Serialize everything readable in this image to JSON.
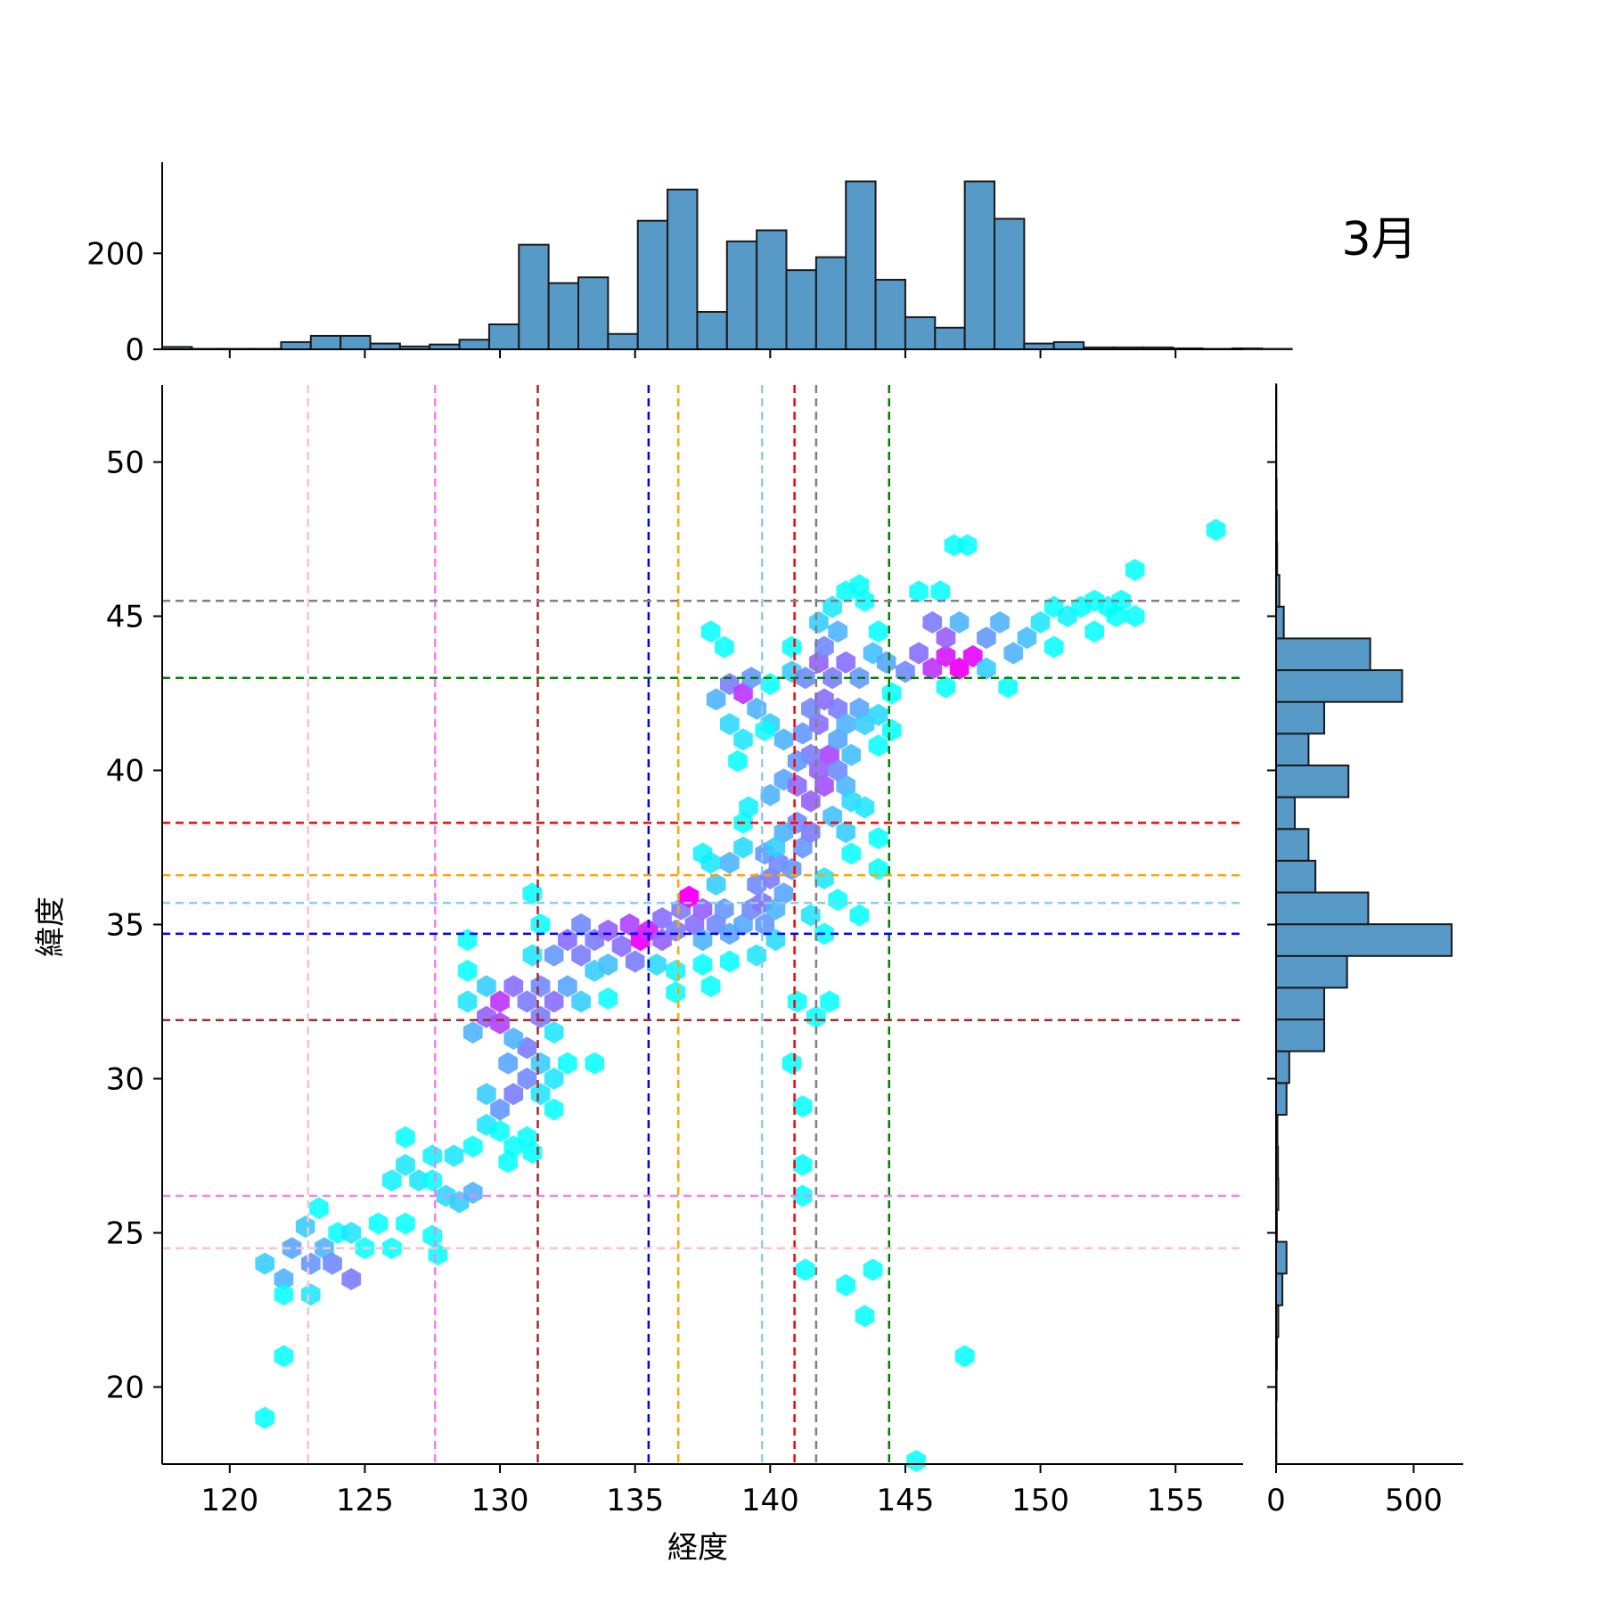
{
  "chart_data": {
    "type": "hexbin",
    "title": "3月",
    "xlabel": "経度",
    "ylabel": "緯度",
    "xlim": [
      117.5,
      157.5
    ],
    "ylim": [
      17.5,
      52.5
    ],
    "x_ticks": [
      120,
      125,
      130,
      135,
      140,
      145,
      150,
      155
    ],
    "y_ticks": [
      20,
      25,
      30,
      35,
      40,
      45,
      50
    ],
    "color_scale": [
      "#00ffff",
      "#ff00ff"
    ],
    "grid": false,
    "vertical_lines": [
      {
        "x": 122.9,
        "color": "#ffc0cb"
      },
      {
        "x": 127.6,
        "color": "#ee82ee"
      },
      {
        "x": 131.4,
        "color": "#a52a2a"
      },
      {
        "x": 135.5,
        "color": "#0000ff"
      },
      {
        "x": 136.6,
        "color": "#ffa500"
      },
      {
        "x": 139.7,
        "color": "#87ceeb"
      },
      {
        "x": 140.9,
        "color": "#ff0000"
      },
      {
        "x": 141.7,
        "color": "#808080"
      },
      {
        "x": 144.4,
        "color": "#008000"
      }
    ],
    "horizontal_lines": [
      {
        "y": 45.5,
        "color": "#808080"
      },
      {
        "y": 43.0,
        "color": "#008000"
      },
      {
        "y": 38.3,
        "color": "#ff0000"
      },
      {
        "y": 36.6,
        "color": "#ffa500"
      },
      {
        "y": 35.7,
        "color": "#87ceeb"
      },
      {
        "y": 34.7,
        "color": "#0000ff"
      },
      {
        "y": 31.9,
        "color": "#a52a2a"
      },
      {
        "y": 26.2,
        "color": "#ee82ee"
      },
      {
        "y": 24.5,
        "color": "#ffc0cb"
      }
    ],
    "hexbin_cells": [
      [
        121.3,
        19.0,
        0.0
      ],
      [
        122.0,
        21.0,
        0.0
      ],
      [
        121.3,
        24.0,
        0.2
      ],
      [
        122.0,
        23.5,
        0.3
      ],
      [
        122.3,
        24.5,
        0.35
      ],
      [
        123.0,
        24.0,
        0.4
      ],
      [
        123.5,
        24.5,
        0.3
      ],
      [
        122.8,
        25.2,
        0.2
      ],
      [
        124.0,
        25.0,
        0.0
      ],
      [
        124.5,
        25.0,
        0.1
      ],
      [
        125.0,
        24.5,
        0.0
      ],
      [
        126.0,
        24.5,
        0.0
      ],
      [
        123.8,
        24.0,
        0.45
      ],
      [
        124.5,
        23.5,
        0.5
      ],
      [
        123.0,
        23.0,
        0.1
      ],
      [
        122.0,
        23.0,
        0.0
      ],
      [
        123.3,
        25.8,
        0.0
      ],
      [
        125.5,
        25.3,
        0.0
      ],
      [
        126.5,
        25.3,
        0.0
      ],
      [
        126.0,
        26.7,
        0.05
      ],
      [
        126.5,
        27.2,
        0.1
      ],
      [
        127.0,
        26.7,
        0.1
      ],
      [
        127.5,
        26.7,
        0.0
      ],
      [
        128.0,
        26.2,
        0.15
      ],
      [
        128.5,
        26.0,
        0.2
      ],
      [
        129.0,
        26.3,
        0.3
      ],
      [
        127.5,
        27.5,
        0.05
      ],
      [
        128.3,
        27.5,
        0.1
      ],
      [
        129.0,
        27.8,
        0.0
      ],
      [
        126.5,
        28.1,
        0.0
      ],
      [
        127.7,
        24.3,
        0.0
      ],
      [
        127.5,
        24.9,
        0.0
      ],
      [
        129.5,
        28.5,
        0.1
      ],
      [
        130.0,
        28.3,
        0.0
      ],
      [
        130.5,
        27.8,
        0.0
      ],
      [
        130.3,
        27.3,
        0.0
      ],
      [
        131.0,
        28.1,
        0.0
      ],
      [
        131.2,
        27.6,
        0.0
      ],
      [
        129.5,
        29.5,
        0.2
      ],
      [
        130.0,
        29.0,
        0.4
      ],
      [
        130.5,
        29.5,
        0.5
      ],
      [
        131.0,
        30.0,
        0.45
      ],
      [
        130.3,
        30.5,
        0.35
      ],
      [
        131.0,
        31.0,
        0.5
      ],
      [
        130.5,
        31.3,
        0.3
      ],
      [
        131.5,
        30.5,
        0.2
      ],
      [
        131.5,
        29.5,
        0.1
      ],
      [
        132.0,
        29.0,
        0.0
      ],
      [
        132.0,
        30.0,
        0.1
      ],
      [
        132.5,
        30.5,
        0.0
      ],
      [
        132.0,
        31.5,
        0.1
      ],
      [
        133.5,
        30.5,
        0.0
      ],
      [
        129.0,
        31.5,
        0.3
      ],
      [
        129.5,
        32.0,
        0.6
      ],
      [
        130.0,
        32.5,
        0.75
      ],
      [
        130.5,
        33.0,
        0.55
      ],
      [
        130.0,
        31.8,
        0.7
      ],
      [
        131.0,
        32.5,
        0.5
      ],
      [
        131.5,
        33.0,
        0.45
      ],
      [
        132.0,
        32.5,
        0.55
      ],
      [
        131.5,
        32.0,
        0.5
      ],
      [
        132.5,
        33.0,
        0.35
      ],
      [
        133.0,
        32.5,
        0.2
      ],
      [
        129.5,
        33.0,
        0.2
      ],
      [
        128.8,
        32.5,
        0.1
      ],
      [
        128.8,
        33.5,
        0.0
      ],
      [
        128.8,
        34.5,
        0.0
      ],
      [
        131.2,
        34.0,
        0.1
      ],
      [
        131.5,
        35.0,
        0.0
      ],
      [
        131.2,
        36.0,
        0.0
      ],
      [
        132.0,
        34.0,
        0.4
      ],
      [
        132.5,
        34.5,
        0.55
      ],
      [
        133.0,
        34.0,
        0.5
      ],
      [
        133.0,
        35.0,
        0.45
      ],
      [
        133.5,
        34.5,
        0.5
      ],
      [
        133.5,
        33.5,
        0.2
      ],
      [
        134.0,
        33.7,
        0.25
      ],
      [
        134.0,
        34.8,
        0.6
      ],
      [
        134.5,
        34.3,
        0.55
      ],
      [
        134.8,
        35.0,
        0.7
      ],
      [
        135.2,
        34.5,
        0.95
      ],
      [
        135.5,
        34.8,
        0.85
      ],
      [
        135.0,
        33.8,
        0.5
      ],
      [
        136.0,
        34.5,
        0.6
      ],
      [
        136.0,
        35.2,
        0.55
      ],
      [
        136.5,
        34.8,
        0.5
      ],
      [
        136.7,
        35.5,
        0.5
      ],
      [
        137.2,
        35.0,
        0.55
      ],
      [
        137.5,
        35.5,
        0.6
      ],
      [
        137.0,
        35.9,
        1.0
      ],
      [
        137.5,
        34.5,
        0.3
      ],
      [
        138.0,
        35.0,
        0.45
      ],
      [
        138.3,
        35.5,
        0.4
      ],
      [
        138.5,
        34.7,
        0.35
      ],
      [
        139.0,
        35.0,
        0.35
      ],
      [
        139.3,
        35.5,
        0.45
      ],
      [
        139.7,
        35.7,
        0.55
      ],
      [
        139.8,
        35.0,
        0.4
      ],
      [
        140.2,
        35.5,
        0.3
      ],
      [
        140.5,
        36.0,
        0.35
      ],
      [
        140.2,
        34.5,
        0.15
      ],
      [
        139.5,
        34.0,
        0.1
      ],
      [
        138.5,
        33.8,
        0.0
      ],
      [
        137.5,
        33.7,
        0.0
      ],
      [
        136.5,
        33.5,
        0.05
      ],
      [
        135.8,
        33.7,
        0.15
      ],
      [
        137.8,
        33.0,
        0.0
      ],
      [
        136.5,
        32.8,
        0.0
      ],
      [
        134.0,
        32.6,
        0.0
      ],
      [
        139.5,
        36.3,
        0.45
      ],
      [
        140.0,
        36.5,
        0.5
      ],
      [
        139.8,
        37.3,
        0.4
      ],
      [
        140.3,
        37.0,
        0.45
      ],
      [
        140.8,
        36.8,
        0.4
      ],
      [
        141.2,
        37.5,
        0.4
      ],
      [
        141.5,
        38.0,
        0.5
      ],
      [
        141.0,
        38.3,
        0.45
      ],
      [
        140.5,
        38.0,
        0.3
      ],
      [
        140.2,
        37.5,
        0.2
      ],
      [
        139.0,
        37.5,
        0.15
      ],
      [
        138.5,
        37.0,
        0.3
      ],
      [
        138.0,
        36.3,
        0.2
      ],
      [
        137.8,
        37.0,
        0.1
      ],
      [
        137.5,
        37.3,
        0.05
      ],
      [
        139.0,
        38.3,
        0.0
      ],
      [
        139.2,
        38.8,
        0.05
      ],
      [
        140.0,
        39.2,
        0.3
      ],
      [
        140.5,
        39.7,
        0.35
      ],
      [
        141.0,
        39.5,
        0.55
      ],
      [
        141.5,
        39.0,
        0.6
      ],
      [
        142.0,
        39.5,
        0.65
      ],
      [
        141.8,
        40.0,
        0.6
      ],
      [
        142.2,
        40.5,
        0.7
      ],
      [
        141.5,
        40.5,
        0.5
      ],
      [
        141.0,
        40.3,
        0.4
      ],
      [
        142.5,
        40.0,
        0.45
      ],
      [
        142.8,
        39.5,
        0.3
      ],
      [
        143.0,
        40.5,
        0.25
      ],
      [
        142.5,
        41.0,
        0.35
      ],
      [
        141.8,
        41.5,
        0.55
      ],
      [
        141.2,
        41.2,
        0.4
      ],
      [
        140.5,
        41.0,
        0.3
      ],
      [
        140.0,
        41.5,
        0.2
      ],
      [
        141.5,
        42.0,
        0.45
      ],
      [
        142.0,
        42.3,
        0.55
      ],
      [
        142.5,
        42.0,
        0.5
      ],
      [
        142.8,
        41.5,
        0.3
      ],
      [
        143.3,
        42.0,
        0.35
      ],
      [
        143.5,
        41.5,
        0.2
      ],
      [
        144.0,
        41.8,
        0.15
      ],
      [
        144.0,
        40.8,
        0.0
      ],
      [
        144.5,
        41.3,
        0.0
      ],
      [
        143.0,
        39.0,
        0.15
      ],
      [
        143.5,
        38.8,
        0.1
      ],
      [
        142.3,
        38.5,
        0.25
      ],
      [
        142.8,
        38.0,
        0.2
      ],
      [
        143.0,
        37.3,
        0.0
      ],
      [
        144.0,
        37.8,
        0.0
      ],
      [
        144.0,
        36.8,
        0.0
      ],
      [
        142.5,
        35.8,
        0.0
      ],
      [
        141.5,
        35.3,
        0.1
      ],
      [
        142.0,
        34.7,
        0.0
      ],
      [
        143.3,
        35.3,
        0.0
      ],
      [
        142.0,
        36.5,
        0.1
      ],
      [
        138.0,
        42.3,
        0.3
      ],
      [
        138.5,
        42.8,
        0.5
      ],
      [
        139.0,
        42.5,
        0.75
      ],
      [
        139.3,
        43.0,
        0.4
      ],
      [
        139.5,
        42.0,
        0.3
      ],
      [
        138.5,
        41.5,
        0.15
      ],
      [
        139.0,
        41.0,
        0.1
      ],
      [
        138.8,
        40.3,
        0.0
      ],
      [
        140.0,
        42.8,
        0.0
      ],
      [
        139.8,
        41.3,
        0.0
      ],
      [
        137.8,
        44.5,
        0.0
      ],
      [
        138.3,
        44.0,
        0.0
      ],
      [
        140.8,
        43.2,
        0.2
      ],
      [
        141.3,
        43.0,
        0.45
      ],
      [
        141.8,
        43.5,
        0.6
      ],
      [
        142.3,
        43.0,
        0.5
      ],
      [
        142.8,
        43.5,
        0.55
      ],
      [
        143.3,
        43.0,
        0.4
      ],
      [
        142.0,
        44.0,
        0.45
      ],
      [
        142.5,
        44.5,
        0.3
      ],
      [
        141.8,
        44.8,
        0.2
      ],
      [
        142.3,
        45.3,
        0.1
      ],
      [
        142.8,
        45.8,
        0.0
      ],
      [
        143.3,
        46.0,
        0.0
      ],
      [
        143.5,
        45.5,
        0.0
      ],
      [
        143.8,
        43.8,
        0.25
      ],
      [
        144.3,
        43.5,
        0.35
      ],
      [
        144.0,
        44.5,
        0.0
      ],
      [
        140.8,
        44.0,
        0.0
      ],
      [
        145.0,
        43.2,
        0.45
      ],
      [
        145.5,
        43.8,
        0.55
      ],
      [
        146.0,
        43.3,
        0.75
      ],
      [
        146.5,
        43.7,
        0.85
      ],
      [
        147.0,
        43.3,
        0.95
      ],
      [
        147.5,
        43.7,
        0.9
      ],
      [
        146.5,
        44.3,
        0.6
      ],
      [
        146.0,
        44.8,
        0.5
      ],
      [
        147.0,
        44.8,
        0.3
      ],
      [
        148.0,
        44.3,
        0.4
      ],
      [
        148.5,
        44.8,
        0.3
      ],
      [
        148.0,
        43.3,
        0.2
      ],
      [
        149.0,
        43.8,
        0.3
      ],
      [
        149.5,
        44.3,
        0.25
      ],
      [
        150.0,
        44.8,
        0.1
      ],
      [
        150.5,
        45.3,
        0.0
      ],
      [
        151.0,
        45.0,
        0.05
      ],
      [
        151.5,
        45.3,
        0.0
      ],
      [
        152.0,
        45.5,
        0.0
      ],
      [
        152.5,
        45.3,
        0.0
      ],
      [
        153.0,
        45.5,
        0.0
      ],
      [
        153.5,
        45.0,
        0.0
      ],
      [
        152.8,
        45.0,
        0.0
      ],
      [
        152.0,
        44.5,
        0.0
      ],
      [
        150.5,
        44.0,
        0.0
      ],
      [
        148.8,
        42.7,
        0.0
      ],
      [
        146.5,
        42.7,
        0.0
      ],
      [
        144.5,
        42.5,
        0.0
      ],
      [
        145.5,
        45.8,
        0.0
      ],
      [
        146.3,
        45.8,
        0.0
      ],
      [
        146.8,
        47.3,
        0.0
      ],
      [
        147.3,
        47.3,
        0.0
      ],
      [
        153.5,
        46.5,
        0.0
      ],
      [
        156.5,
        47.8,
        0.0
      ],
      [
        141.0,
        32.5,
        0.0
      ],
      [
        142.2,
        32.5,
        0.0
      ],
      [
        141.7,
        32.0,
        0.0
      ],
      [
        140.8,
        30.5,
        0.0
      ],
      [
        141.2,
        29.1,
        0.0
      ],
      [
        141.2,
        27.2,
        0.0
      ],
      [
        141.2,
        26.2,
        0.0
      ],
      [
        141.3,
        23.8,
        0.0
      ],
      [
        142.8,
        23.3,
        0.0
      ],
      [
        143.8,
        23.8,
        0.0
      ],
      [
        143.5,
        22.3,
        0.0
      ],
      [
        147.2,
        21.0,
        0.0
      ],
      [
        145.4,
        17.6,
        0.0
      ]
    ],
    "marginal_x": {
      "bin_start": 117.5,
      "bin_width": 1.1,
      "counts": [
        5,
        1,
        1,
        1,
        15,
        28,
        28,
        12,
        6,
        10,
        20,
        52,
        218,
        138,
        150,
        32,
        268,
        333,
        78,
        225,
        248,
        165,
        192,
        350,
        145,
        67,
        45,
        350,
        272,
        12,
        15,
        4,
        4,
        4,
        2,
        1,
        2,
        1
      ],
      "y_ticks": [
        0,
        200
      ],
      "ylim": [
        0,
        390
      ]
    },
    "marginal_y": {
      "bin_start": 17.5,
      "bin_width": 1.03,
      "counts": [
        1,
        1,
        2,
        3,
        8,
        23,
        38,
        3,
        8,
        7,
        5,
        38,
        48,
        175,
        175,
        258,
        638,
        335,
        143,
        118,
        68,
        263,
        118,
        175,
        458,
        342,
        28,
        12,
        4,
        3,
        2,
        1,
        1,
        1
      ],
      "x_ticks": [
        0,
        500
      ],
      "xlim": [
        0,
        680
      ]
    }
  }
}
